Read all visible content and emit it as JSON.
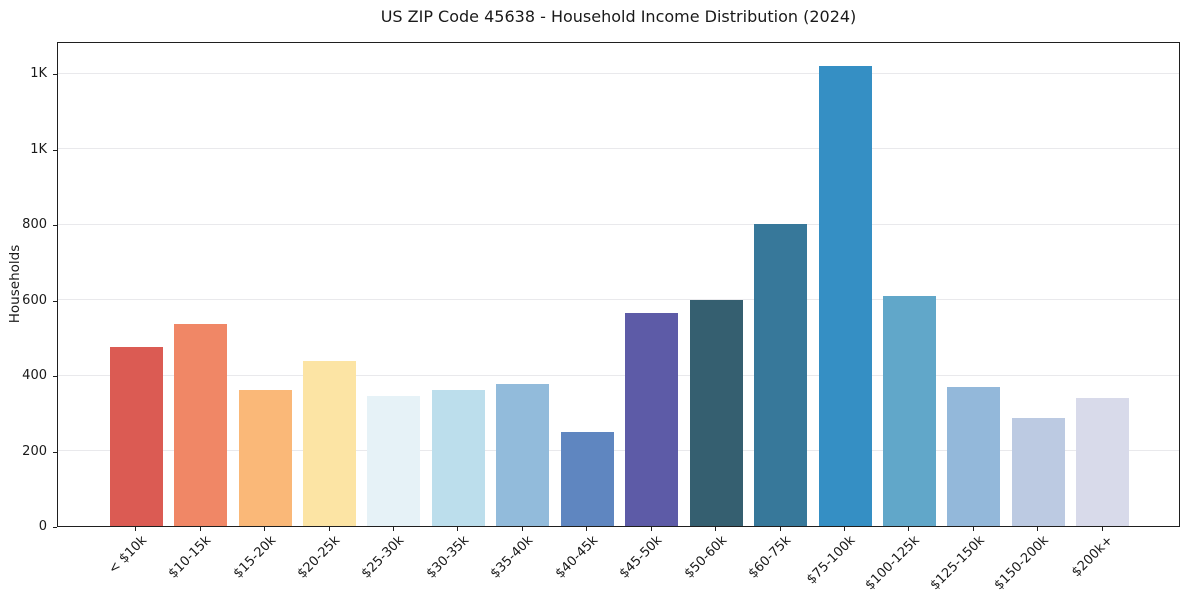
{
  "chart_data": {
    "type": "bar",
    "title": "US ZIP Code 45638 - Household Income Distribution (2024)",
    "xlabel": "",
    "ylabel": "Households",
    "categories": [
      "< $10k",
      "$10-15k",
      "$15-20k",
      "$20-25k",
      "$25-30k",
      "$30-35k",
      "$35-40k",
      "$40-45k",
      "$45-50k",
      "$50-60k",
      "$60-75k",
      "$75-100k",
      "$100-125k",
      "$125-150k",
      "$150-200k",
      "$200k+"
    ],
    "values": [
      475,
      535,
      360,
      438,
      345,
      360,
      375,
      250,
      565,
      600,
      800,
      1218,
      610,
      368,
      285,
      338
    ],
    "bar_colors": [
      "#db5b53",
      "#f08766",
      "#fab878",
      "#fce4a4",
      "#e6f2f7",
      "#bcdeec",
      "#92bbdb",
      "#5f86c0",
      "#5d5ba7",
      "#355f70",
      "#37789a",
      "#358fc4",
      "#61a7c9",
      "#93b8da",
      "#bccae2",
      "#d8daea"
    ],
    "ylim": [
      0,
      1285
    ],
    "yticks": [
      0,
      200,
      400,
      600,
      800,
      1000,
      1200
    ],
    "ytick_labels": [
      "0",
      "200",
      "400",
      "600",
      "800",
      "1K",
      "1K"
    ],
    "grid": "horizontal",
    "gridline_color": "#e9e9ec",
    "legend": "none",
    "xtick_rotation_deg": 45
  }
}
